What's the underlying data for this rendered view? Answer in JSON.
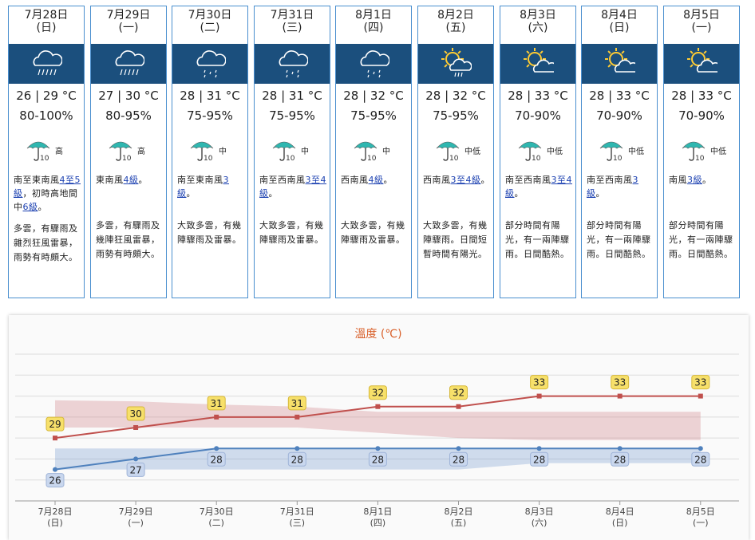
{
  "days": [
    {
      "date": "7月28日",
      "weekday": "(日)",
      "temp": "26 | 29 °C",
      "rh": "80-100%",
      "psr": "高",
      "icon": "heavy-rain-icon",
      "wind": [
        {
          "t": "南至東南風"
        },
        {
          "t": "4至5級",
          "u": true
        },
        {
          "t": "，初時高地間中"
        },
        {
          "t": "6級",
          "u": true
        },
        {
          "t": "。"
        }
      ],
      "desc": "多雲，有驟雨及雜烈狂風雷暴，雨勢有時頗大。"
    },
    {
      "date": "7月29日",
      "weekday": "(一)",
      "temp": "27 | 30 °C",
      "rh": "80-95%",
      "psr": "高",
      "icon": "heavy-rain-icon",
      "wind": [
        {
          "t": "東南風"
        },
        {
          "t": "4級",
          "u": true
        },
        {
          "t": "。"
        }
      ],
      "desc": "多雲，有驟雨及幾陣狂風雷暴，雨勢有時頗大。"
    },
    {
      "date": "7月30日",
      "weekday": "(二)",
      "temp": "28 | 31 °C",
      "rh": "75-95%",
      "psr": "中",
      "icon": "showers-icon",
      "wind": [
        {
          "t": "南至東南風"
        },
        {
          "t": "3級",
          "u": true
        },
        {
          "t": "。"
        }
      ],
      "desc": "大致多雲，有幾陣驟雨及雷暴。"
    },
    {
      "date": "7月31日",
      "weekday": "(三)",
      "temp": "28 | 31 °C",
      "rh": "75-95%",
      "psr": "中",
      "icon": "showers-icon",
      "wind": [
        {
          "t": "南至西南風"
        },
        {
          "t": "3至4級",
          "u": true
        },
        {
          "t": "。"
        }
      ],
      "desc": "大致多雲，有幾陣驟雨及雷暴。"
    },
    {
      "date": "8月1日",
      "weekday": "(四)",
      "temp": "28 | 32 °C",
      "rh": "75-95%",
      "psr": "中",
      "icon": "showers-icon",
      "wind": [
        {
          "t": "西南風"
        },
        {
          "t": "4級",
          "u": true
        },
        {
          "t": "。"
        }
      ],
      "desc": "大致多雲，有幾陣驟雨及雷暴。"
    },
    {
      "date": "8月2日",
      "weekday": "(五)",
      "temp": "28 | 32 °C",
      "rh": "75-95%",
      "psr": "中低",
      "icon": "sunny-showers-icon",
      "wind": [
        {
          "t": "西南風"
        },
        {
          "t": "3至4級",
          "u": true
        },
        {
          "t": "。"
        }
      ],
      "desc": "大致多雲，有幾陣驟雨。日間短暫時間有陽光。"
    },
    {
      "date": "8月3日",
      "weekday": "(六)",
      "temp": "28 | 33 °C",
      "rh": "70-90%",
      "psr": "中低",
      "icon": "sunny-periods-icon",
      "wind": [
        {
          "t": "南至西南風"
        },
        {
          "t": "3至4級",
          "u": true
        },
        {
          "t": "。"
        }
      ],
      "desc": "部分時間有陽光，有一兩陣驟雨。日間酷熱。"
    },
    {
      "date": "8月4日",
      "weekday": "(日)",
      "temp": "28 | 33 °C",
      "rh": "70-90%",
      "psr": "中低",
      "icon": "sunny-periods-icon",
      "wind": [
        {
          "t": "南至西南風"
        },
        {
          "t": "3級",
          "u": true
        },
        {
          "t": "。"
        }
      ],
      "desc": "部分時間有陽光，有一兩陣驟雨。日間酷熱。"
    },
    {
      "date": "8月5日",
      "weekday": "(一)",
      "temp": "28 | 33 °C",
      "rh": "70-90%",
      "psr": "中低",
      "icon": "sunny-periods-icon",
      "wind": [
        {
          "t": "南風"
        },
        {
          "t": "3級",
          "u": true
        },
        {
          "t": "。"
        }
      ],
      "desc": "部分時間有陽光，有一兩陣驟雨。日間酷熱。"
    }
  ],
  "colors": {
    "border": "#4a8fcf",
    "iconband": "#1b4f7d",
    "max_line": "#c0504d",
    "min_line": "#4f81bd",
    "title": "#d9602a",
    "link": "#1a3fb0"
  },
  "chart_data": {
    "type": "line",
    "title": "溫度 (℃)",
    "categories": [
      "7月28日",
      "7月29日",
      "7月30日",
      "7月31日",
      "8月1日",
      "8月2日",
      "8月3日",
      "8月4日",
      "8月5日"
    ],
    "weekdays": [
      "(日)",
      "(一)",
      "(二)",
      "(三)",
      "(四)",
      "(五)",
      "(六)",
      "(日)",
      "(一)"
    ],
    "series": [
      {
        "values": [
          29,
          30,
          31,
          31,
          32,
          32,
          33,
          33,
          33
        ],
        "color": "#c0504d",
        "band_lo": [
          30,
          30,
          30,
          30,
          29.5,
          29,
          28.8,
          28.8,
          28.8
        ],
        "band_hi": [
          32.6,
          32.5,
          32.2,
          32.0,
          31.5,
          31.5,
          31.5,
          31.5,
          31.5
        ]
      },
      {
        "values": [
          26,
          27,
          28,
          28,
          28,
          28,
          28,
          28,
          28
        ],
        "color": "#4f81bd",
        "band_lo": [
          26,
          26,
          26,
          26,
          26,
          26,
          26.6,
          26.6,
          26.6
        ],
        "band_hi": [
          28,
          28,
          28,
          28,
          28,
          28,
          28,
          28,
          28
        ]
      }
    ],
    "ylim": [
      23,
      37
    ],
    "grid": true
  }
}
